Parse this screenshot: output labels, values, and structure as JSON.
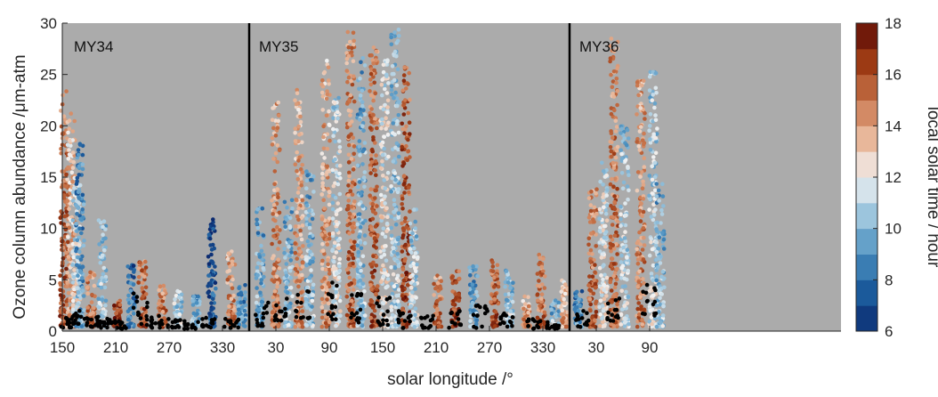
{
  "chart_data": {
    "type": "scatter",
    "xlabel": "solar longitude /°",
    "ylabel": "Ozone column abundance /μm-atm",
    "ylim": [
      0,
      30
    ],
    "y_ticks": [
      0,
      5,
      10,
      15,
      20,
      25,
      30
    ],
    "x_domain_continuous_ls": [
      150,
      1025
    ],
    "x_ticks": [
      {
        "ls": 150,
        "label": "150"
      },
      {
        "ls": 210,
        "label": "210"
      },
      {
        "ls": 270,
        "label": "270"
      },
      {
        "ls": 330,
        "label": "330"
      },
      {
        "ls": 390,
        "label": "30"
      },
      {
        "ls": 450,
        "label": "90"
      },
      {
        "ls": 510,
        "label": "150"
      },
      {
        "ls": 570,
        "label": "210"
      },
      {
        "ls": 630,
        "label": "270"
      },
      {
        "ls": 690,
        "label": "330"
      },
      {
        "ls": 750,
        "label": "30"
      },
      {
        "ls": 810,
        "label": "90"
      }
    ],
    "mars_year_boundaries_ls": [
      360,
      720
    ],
    "mars_year_labels": [
      {
        "label": "MY34",
        "ls": 155
      },
      {
        "label": "MY35",
        "ls": 363
      },
      {
        "label": "MY36",
        "ls": 723
      }
    ],
    "background_color": "#ababab",
    "colorbar": {
      "label": "local solar time / hour",
      "range": [
        6,
        18
      ],
      "ticks": [
        "6",
        "8",
        "10",
        "12",
        "14",
        "16",
        "18"
      ],
      "colormap": [
        "#0b2a6f",
        "#1b5a9b",
        "#4a8fbf",
        "#9cc5dd",
        "#f2f2f2",
        "#e8b79a",
        "#c8744a",
        "#9c3a14",
        "#5c0a05"
      ]
    },
    "series": [
      {
        "name": "",
        "description_role": "daily minimum / nadir points",
        "color": "#000000",
        "clusters": [
          {
            "ls": 155,
            "y": [
              0.3,
              1.5
            ]
          },
          {
            "ls": 170,
            "y": [
              0.5,
              2.0
            ]
          },
          {
            "ls": 185,
            "y": [
              0.4,
              1.5
            ]
          },
          {
            "ls": 200,
            "y": [
              0.3,
              1.2
            ]
          },
          {
            "ls": 215,
            "y": [
              0.2,
              1.0
            ]
          },
          {
            "ls": 238,
            "y": [
              0.5,
              4.0
            ]
          },
          {
            "ls": 255,
            "y": [
              0.3,
              1.5
            ]
          },
          {
            "ls": 275,
            "y": [
              0.3,
              1.2
            ]
          },
          {
            "ls": 295,
            "y": [
              0.2,
              1.0
            ]
          },
          {
            "ls": 315,
            "y": [
              0.3,
              1.5
            ]
          },
          {
            "ls": 340,
            "y": [
              0.3,
              1.2
            ]
          },
          {
            "ls": 375,
            "y": [
              0.5,
              2.8
            ]
          },
          {
            "ls": 395,
            "y": [
              1.0,
              3.5
            ]
          },
          {
            "ls": 420,
            "y": [
              1.2,
              4.0
            ]
          },
          {
            "ls": 455,
            "y": [
              1.0,
              5.0
            ]
          },
          {
            "ls": 480,
            "y": [
              0.8,
              4.5
            ]
          },
          {
            "ls": 510,
            "y": [
              0.5,
              3.5
            ]
          },
          {
            "ls": 535,
            "y": [
              0.3,
              2.0
            ]
          },
          {
            "ls": 560,
            "y": [
              0.3,
              1.5
            ]
          },
          {
            "ls": 590,
            "y": [
              0.3,
              2.0
            ]
          },
          {
            "ls": 620,
            "y": [
              0.3,
              2.5
            ]
          },
          {
            "ls": 650,
            "y": [
              0.3,
              2.0
            ]
          },
          {
            "ls": 680,
            "y": [
              0.2,
              1.2
            ]
          },
          {
            "ls": 700,
            "y": [
              0.2,
              1.0
            ]
          },
          {
            "ls": 735,
            "y": [
              0.3,
              2.0
            ]
          },
          {
            "ls": 770,
            "y": [
              1.0,
              3.8
            ]
          },
          {
            "ls": 810,
            "y": [
              1.5,
              4.5
            ]
          }
        ]
      },
      {
        "name": "",
        "description_role": "ozone retrievals colored by local solar time",
        "clusters": [
          {
            "ls": 152,
            "ymax": 23.5,
            "lst": 15.5
          },
          {
            "ls": 160,
            "ymax": 21.5,
            "lst": 13.5
          },
          {
            "ls": 166,
            "ymax": 15.0,
            "lst": 11.5
          },
          {
            "ls": 170,
            "ymax": 18.5,
            "lst": 9.0
          },
          {
            "ls": 182,
            "ymax": 6.0,
            "lst": 15.0
          },
          {
            "ls": 195,
            "ymax": 11.0,
            "lst": 10.5
          },
          {
            "ls": 212,
            "ymax": 3.0,
            "lst": 16.5
          },
          {
            "ls": 228,
            "ymax": 6.5,
            "lst": 8.0
          },
          {
            "ls": 240,
            "ymax": 7.0,
            "lst": 15.5
          },
          {
            "ls": 262,
            "ymax": 4.5,
            "lst": 15.0
          },
          {
            "ls": 280,
            "ymax": 4.0,
            "lst": 11.0
          },
          {
            "ls": 300,
            "ymax": 3.5,
            "lst": 10.0
          },
          {
            "ls": 318,
            "ymax": 11.0,
            "lst": 7.0
          },
          {
            "ls": 340,
            "ymax": 8.0,
            "lst": 14.5
          },
          {
            "ls": 352,
            "ymax": 4.5,
            "lst": 9.0
          },
          {
            "ls": 372,
            "ymax": 12.0,
            "lst": 9.5
          },
          {
            "ls": 390,
            "ymax": 22.5,
            "lst": 14.5
          },
          {
            "ls": 404,
            "ymax": 13.0,
            "lst": 10.0
          },
          {
            "ls": 416,
            "ymax": 24.0,
            "lst": 14.0
          },
          {
            "ls": 428,
            "ymax": 16.0,
            "lst": 10.0
          },
          {
            "ls": 446,
            "ymax": 26.5,
            "lst": 14.0
          },
          {
            "ls": 458,
            "ymax": 23.0,
            "lst": 11.5
          },
          {
            "ls": 474,
            "ymax": 29.5,
            "lst": 15.0
          },
          {
            "ls": 486,
            "ymax": 27.0,
            "lst": 10.0
          },
          {
            "ls": 500,
            "ymax": 28.5,
            "lst": 15.5
          },
          {
            "ls": 512,
            "ymax": 26.5,
            "lst": 12.0
          },
          {
            "ls": 524,
            "ymax": 29.5,
            "lst": 10.5
          },
          {
            "ls": 536,
            "ymax": 26.0,
            "lst": 16.0
          },
          {
            "ls": 545,
            "ymax": 12.0,
            "lst": 11.0
          },
          {
            "ls": 572,
            "ymax": 5.5,
            "lst": 15.0
          },
          {
            "ls": 592,
            "ymax": 6.0,
            "lst": 16.0
          },
          {
            "ls": 612,
            "ymax": 6.5,
            "lst": 9.5
          },
          {
            "ls": 636,
            "ymax": 7.0,
            "lst": 15.5
          },
          {
            "ls": 652,
            "ymax": 6.0,
            "lst": 10.5
          },
          {
            "ls": 672,
            "ymax": 3.5,
            "lst": 14.0
          },
          {
            "ls": 688,
            "ymax": 7.5,
            "lst": 15.0
          },
          {
            "ls": 704,
            "ymax": 3.0,
            "lst": 10.0
          },
          {
            "ls": 714,
            "ymax": 5.0,
            "lst": 13.5
          },
          {
            "ls": 730,
            "ymax": 4.0,
            "lst": 9.0
          },
          {
            "ls": 746,
            "ymax": 14.0,
            "lst": 15.0
          },
          {
            "ls": 758,
            "ymax": 16.5,
            "lst": 12.0
          },
          {
            "ls": 770,
            "ymax": 29.0,
            "lst": 15.0
          },
          {
            "ls": 782,
            "ymax": 20.0,
            "lst": 11.0
          },
          {
            "ls": 800,
            "ymax": 24.5,
            "lst": 14.5
          },
          {
            "ls": 814,
            "ymax": 25.5,
            "lst": 11.0
          },
          {
            "ls": 822,
            "ymax": 14.5,
            "lst": 10.0
          }
        ]
      }
    ]
  }
}
